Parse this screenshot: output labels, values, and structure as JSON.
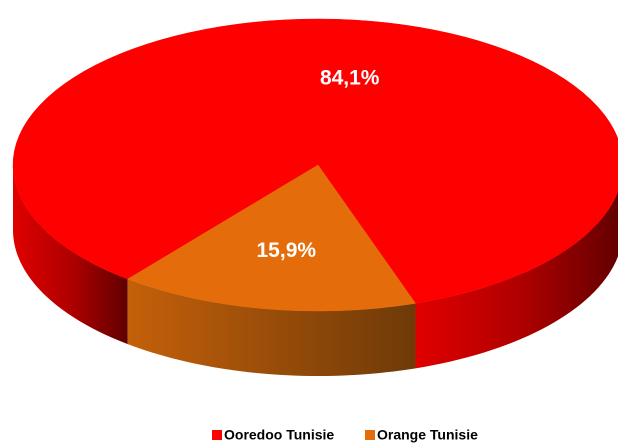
{
  "chart_data": {
    "type": "pie",
    "categories": [
      "Ooredoo Tunisie",
      "Orange Tunisie"
    ],
    "values": [
      84.1,
      15.9
    ],
    "value_labels": [
      "84,1%",
      "15,9%"
    ],
    "colors": [
      "#ff0000",
      "#e46c0a"
    ],
    "legend": "bottom"
  }
}
